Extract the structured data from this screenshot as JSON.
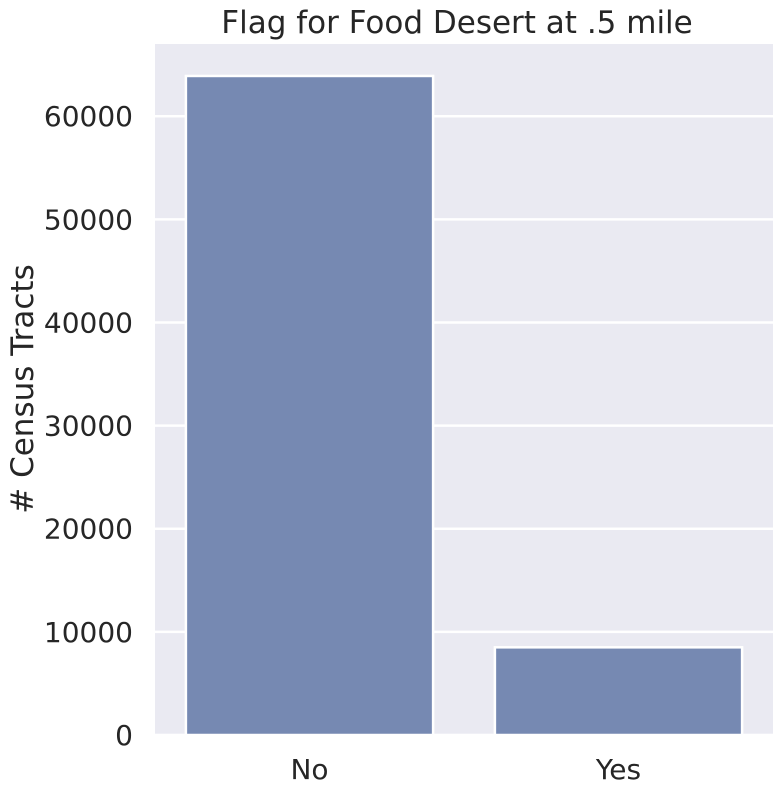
{
  "chart_data": {
    "type": "bar",
    "title": "Flag for Food Desert at .5 mile",
    "xlabel": "",
    "ylabel": "# Census Tracts",
    "categories": [
      "No",
      "Yes"
    ],
    "values": [
      63900,
      8500
    ],
    "ylim": [
      0,
      67000
    ],
    "yticks": [
      0,
      10000,
      20000,
      30000,
      40000,
      50000,
      60000
    ],
    "ytick_labels": [
      "0",
      "10000",
      "20000",
      "30000",
      "40000",
      "50000",
      "60000"
    ],
    "grid": true,
    "legend": "none",
    "colors": {
      "bar": "#7689b2",
      "plot_background": "#eaeaf2",
      "grid": "#ffffff",
      "text": "#262626"
    }
  }
}
